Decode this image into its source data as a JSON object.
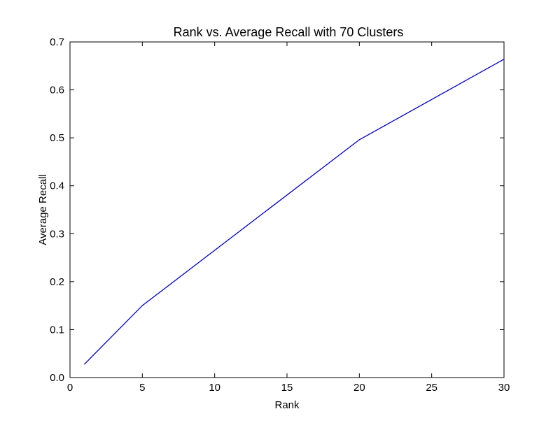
{
  "chart_data": {
    "type": "line",
    "title": "Rank vs. Average Recall with 70 Clusters",
    "xlabel": "Rank",
    "ylabel": "Average Recall",
    "xlim": [
      0,
      30
    ],
    "ylim": [
      0.0,
      0.7
    ],
    "xticks": [
      "0",
      "5",
      "10",
      "15",
      "20",
      "25",
      "30"
    ],
    "yticks": [
      "0.0",
      "0.1",
      "0.2",
      "0.3",
      "0.4",
      "0.5",
      "0.6",
      "0.7"
    ],
    "grid": false,
    "legend": "none",
    "series": [
      {
        "color": "#0000cc",
        "x": [
          1,
          5,
          20,
          30
        ],
        "y": [
          0.028,
          0.15,
          0.496,
          0.664
        ]
      }
    ]
  }
}
